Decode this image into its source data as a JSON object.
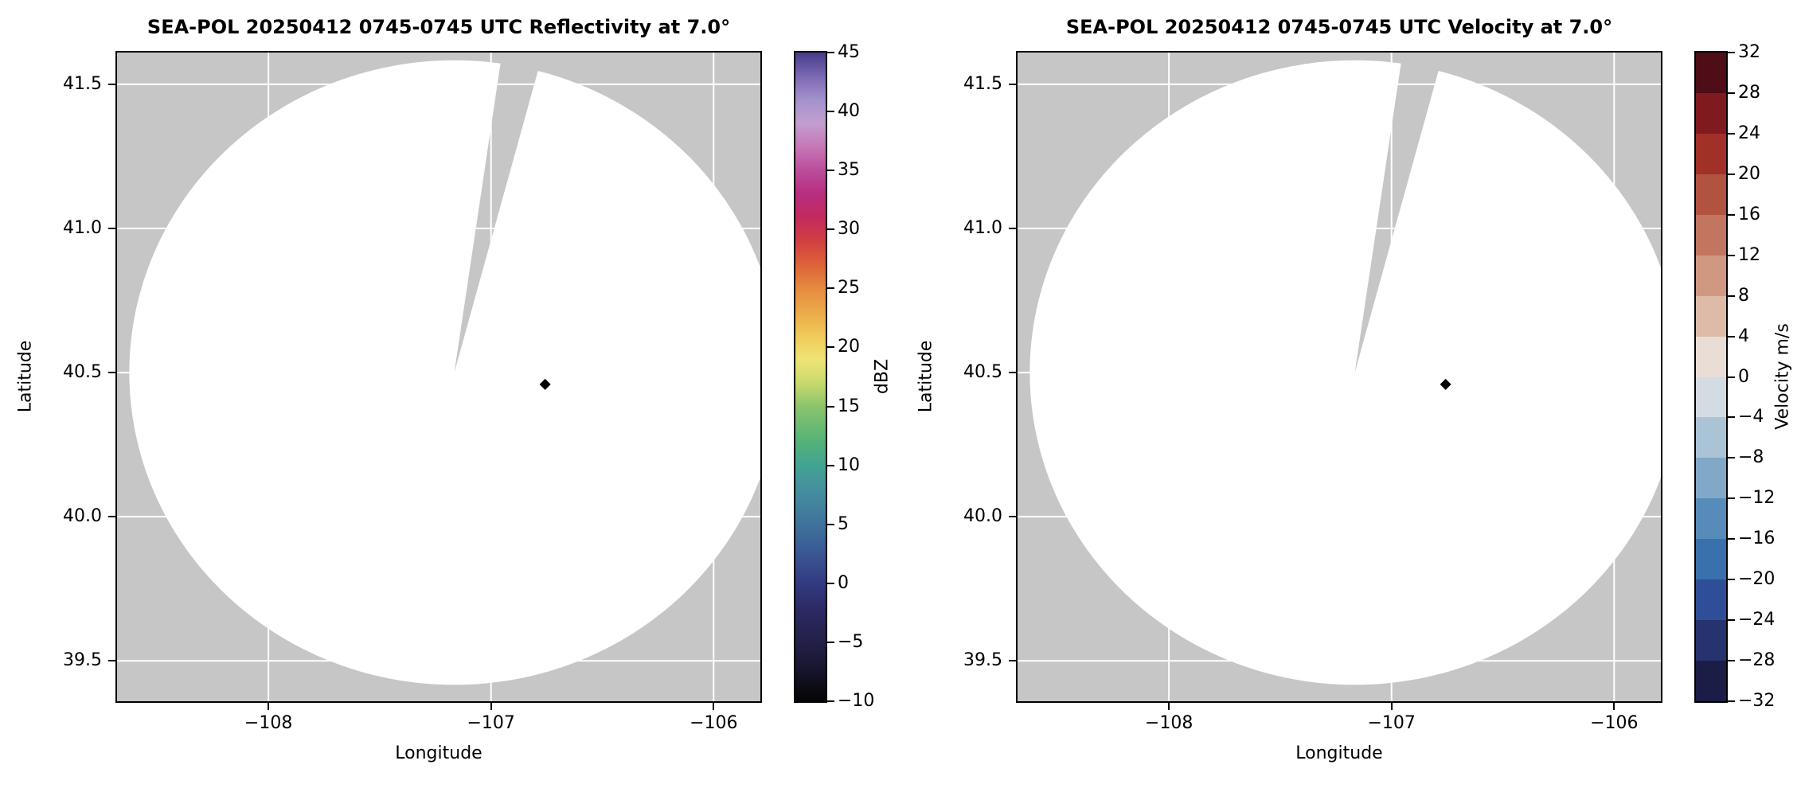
{
  "figure": {
    "background": "#ffffff",
    "frame_color": "#000000"
  },
  "chart_data": [
    {
      "type": "radar_ppi",
      "field": "reflectivity",
      "title": "SEA-POL 20250412 0745-0745 UTC Reflectivity at 7.0°",
      "xlabel": "Longitude",
      "ylabel": "Latitude",
      "xlim": [
        -108.68,
        -105.79
      ],
      "ylim": [
        39.36,
        41.61
      ],
      "grid": true,
      "grid_color": "#ffffff",
      "plot_bg": "#c6c6c6",
      "scan_fill": "#ffffff",
      "xticks": {
        "values": [
          -108,
          -107,
          -106
        ],
        "labels": [
          "−108",
          "−107",
          "−106"
        ]
      },
      "yticks": {
        "values": [
          39.5,
          40.0,
          40.5,
          41.0,
          41.5
        ],
        "labels": [
          "39.5",
          "40.0",
          "40.5",
          "41.0",
          "41.5"
        ]
      },
      "radar": {
        "scan_center": {
          "lon": -107.165,
          "lat": 40.5
        },
        "scan_radius_lon_deg": 1.46,
        "scan_radius_lat_deg": 1.083,
        "missing_sector_azimuth_deg": [
          8.5,
          15.5
        ],
        "marker": {
          "lon": -106.757,
          "lat": 40.459,
          "shape": "diamond",
          "color": "#000000"
        }
      },
      "data_note": "Scan circle contains no reflectivity echoes at or above -10 dBZ; field renders blank white with a gray no-data wedge sector to the north-northeast.",
      "colorbar": {
        "label": "dBZ",
        "min": -10,
        "max": 45,
        "type": "continuous",
        "ticks": {
          "values": [
            45,
            40,
            35,
            30,
            25,
            20,
            15,
            10,
            5,
            0,
            -5,
            -10
          ],
          "labels": [
            "45",
            "40",
            "35",
            "30",
            "25",
            "20",
            "15",
            "10",
            "5",
            "0",
            "−5",
            "−10"
          ]
        },
        "stops": [
          {
            "v": -10,
            "c": "#050505"
          },
          {
            "v": -7,
            "c": "#191731"
          },
          {
            "v": -5,
            "c": "#232048"
          },
          {
            "v": -2,
            "c": "#2d2b66"
          },
          {
            "v": 0,
            "c": "#333a82"
          },
          {
            "v": 3,
            "c": "#3a5d96"
          },
          {
            "v": 5,
            "c": "#40729c"
          },
          {
            "v": 8,
            "c": "#45909f"
          },
          {
            "v": 10,
            "c": "#42a392"
          },
          {
            "v": 12,
            "c": "#54b278"
          },
          {
            "v": 15,
            "c": "#8ac56c"
          },
          {
            "v": 17,
            "c": "#c8da6e"
          },
          {
            "v": 19,
            "c": "#efe474"
          },
          {
            "v": 21,
            "c": "#f0c95a"
          },
          {
            "v": 23,
            "c": "#ecaa49"
          },
          {
            "v": 25,
            "c": "#e68a40"
          },
          {
            "v": 27,
            "c": "#dd6338"
          },
          {
            "v": 29,
            "c": "#d23f40"
          },
          {
            "v": 31,
            "c": "#c42a5e"
          },
          {
            "v": 33,
            "c": "#b72d7f"
          },
          {
            "v": 35,
            "c": "#bb4d9c"
          },
          {
            "v": 37,
            "c": "#c677b6"
          },
          {
            "v": 39,
            "c": "#c39ed0"
          },
          {
            "v": 41,
            "c": "#a492cd"
          },
          {
            "v": 43,
            "c": "#7b68b3"
          },
          {
            "v": 45,
            "c": "#473c8a"
          }
        ]
      }
    },
    {
      "type": "radar_ppi",
      "field": "velocity",
      "title": "SEA-POL 20250412 0745-0745 UTC Velocity at 7.0°",
      "xlabel": "Longitude",
      "ylabel": "Latitude",
      "xlim": [
        -108.68,
        -105.79
      ],
      "ylim": [
        39.36,
        41.61
      ],
      "grid": true,
      "grid_color": "#ffffff",
      "plot_bg": "#c6c6c6",
      "scan_fill": "#ffffff",
      "xticks": {
        "values": [
          -108,
          -107,
          -106
        ],
        "labels": [
          "−108",
          "−107",
          "−106"
        ]
      },
      "yticks": {
        "values": [
          39.5,
          40.0,
          40.5,
          41.0,
          41.5
        ],
        "labels": [
          "39.5",
          "40.0",
          "40.5",
          "41.0",
          "41.5"
        ]
      },
      "radar": {
        "scan_center": {
          "lon": -107.165,
          "lat": 40.5
        },
        "scan_radius_lon_deg": 1.46,
        "scan_radius_lat_deg": 1.083,
        "missing_sector_azimuth_deg": [
          8.5,
          15.5
        ],
        "marker": {
          "lon": -106.757,
          "lat": 40.459,
          "shape": "diamond",
          "color": "#000000"
        }
      },
      "data_note": "Scan circle contains no velocity data; field renders blank white with a gray no-data wedge sector to the north-northeast.",
      "colorbar": {
        "label": "Velocity m/s",
        "min": -32,
        "max": 32,
        "type": "discrete",
        "ticks": {
          "values": [
            32,
            28,
            24,
            20,
            16,
            12,
            8,
            4,
            0,
            -4,
            -8,
            -12,
            -16,
            -20,
            -24,
            -28,
            -32
          ],
          "labels": [
            "32",
            "28",
            "24",
            "20",
            "16",
            "12",
            "8",
            "4",
            "0",
            "−4",
            "−8",
            "−12",
            "−16",
            "−20",
            "−24",
            "−28",
            "−32"
          ]
        },
        "segments": [
          {
            "from": -32,
            "to": -28,
            "c": "#1b1d47"
          },
          {
            "from": -28,
            "to": -24,
            "c": "#26336f"
          },
          {
            "from": -24,
            "to": -20,
            "c": "#2e4f97"
          },
          {
            "from": -20,
            "to": -16,
            "c": "#3a70ab"
          },
          {
            "from": -16,
            "to": -12,
            "c": "#578cba"
          },
          {
            "from": -12,
            "to": -8,
            "c": "#82a8c8"
          },
          {
            "from": -8,
            "to": -4,
            "c": "#abc4d5"
          },
          {
            "from": -4,
            "to": 0,
            "c": "#d3dce2"
          },
          {
            "from": 0,
            "to": 4,
            "c": "#e9ddd6"
          },
          {
            "from": 4,
            "to": 8,
            "c": "#ddbba8"
          },
          {
            "from": 8,
            "to": 12,
            "c": "#d09881"
          },
          {
            "from": 12,
            "to": 16,
            "c": "#c27560"
          },
          {
            "from": 16,
            "to": 20,
            "c": "#b25240"
          },
          {
            "from": 20,
            "to": 24,
            "c": "#a03028"
          },
          {
            "from": 24,
            "to": 28,
            "c": "#7f1a20"
          },
          {
            "from": 28,
            "to": 32,
            "c": "#4e0d17"
          }
        ]
      }
    }
  ]
}
